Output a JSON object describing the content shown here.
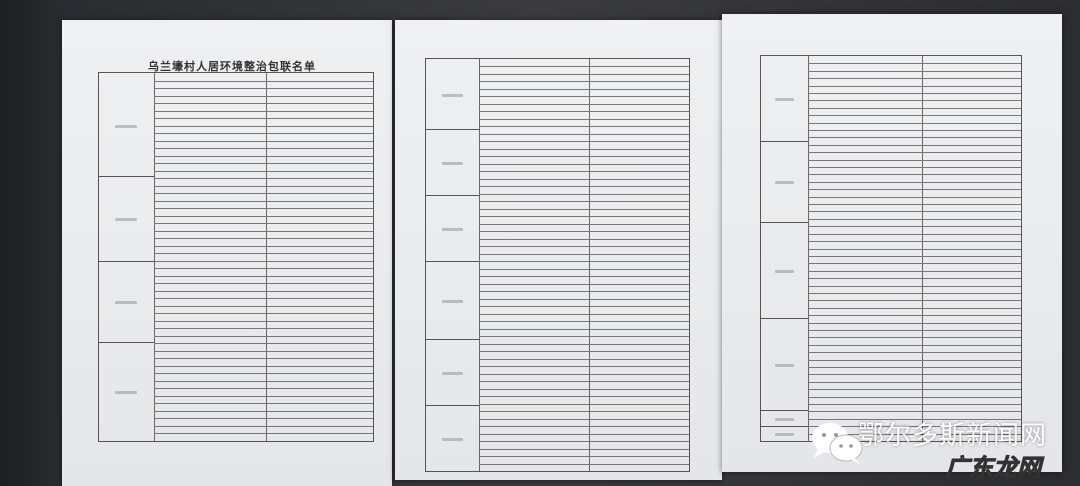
{
  "sheet1": {
    "title": "乌兰壕村人居环境整治包联名单"
  },
  "watermark": {
    "line1": "鄂尔多斯新闻网",
    "line2": "广东龙网",
    "icon": "wechat-icon"
  },
  "colors": {
    "paper": "#e8eaed",
    "table_line": "#666666",
    "background": "#2a2c31"
  }
}
